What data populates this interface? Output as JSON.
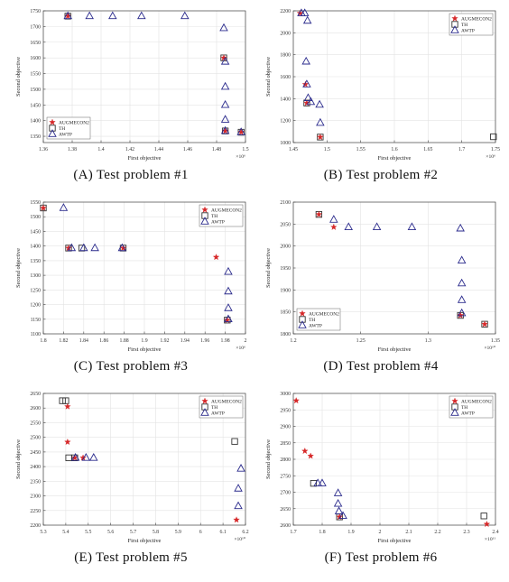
{
  "colors": {
    "augmecon2": "#d62728",
    "th": "#333333",
    "awtp": "#2a2a8c",
    "axis": "#444444",
    "grid": "#e3e3e3"
  },
  "chart_data": [
    {
      "type": "scatter",
      "caption": "(A) Test problem #1",
      "xlabel": "First objective",
      "ylabel": "Second objective",
      "xlim": [
        1.36,
        1.5
      ],
      "ylim": [
        1330,
        1750
      ],
      "xticks": [
        "1.36",
        "1.38",
        "1.4",
        "1.42",
        "1.44",
        "1.46",
        "1.48",
        "1.5"
      ],
      "yticks": [
        "1350",
        "1400",
        "1450",
        "1500",
        "1550",
        "1600",
        "1650",
        "1700",
        "1750"
      ],
      "xexp": "×10⁶",
      "grid": true,
      "legend_position": "bottom-left",
      "series": [
        {
          "name": "AUGMECON2",
          "marker": "star",
          "points": [
            [
              1.377,
              1733
            ],
            [
              1.485,
              1600
            ],
            [
              1.486,
              1367
            ],
            [
              1.497,
              1363
            ]
          ]
        },
        {
          "name": "TH",
          "marker": "square",
          "points": [
            [
              1.377,
              1733
            ],
            [
              1.485,
              1600
            ],
            [
              1.486,
              1367
            ],
            [
              1.497,
              1363
            ]
          ]
        },
        {
          "name": "AWTP",
          "marker": "triangle",
          "points": [
            [
              1.377,
              1733
            ],
            [
              1.392,
              1733
            ],
            [
              1.408,
              1733
            ],
            [
              1.428,
              1733
            ],
            [
              1.458,
              1733
            ],
            [
              1.485,
              1695
            ],
            [
              1.486,
              1588
            ],
            [
              1.486,
              1508
            ],
            [
              1.486,
              1450
            ],
            [
              1.486,
              1403
            ],
            [
              1.486,
              1367
            ],
            [
              1.497,
              1363
            ]
          ]
        }
      ]
    },
    {
      "type": "scatter",
      "caption": "(B) Test problem #2",
      "xlabel": "First objective",
      "ylabel": "Second objective",
      "xlim": [
        1.45,
        1.75
      ],
      "ylim": [
        1000,
        2200
      ],
      "xticks": [
        "1.45",
        "1.5",
        "1.55",
        "1.6",
        "1.65",
        "1.7",
        "1.75"
      ],
      "yticks": [
        "1000",
        "1200",
        "1400",
        "1600",
        "1800",
        "2000",
        "2200"
      ],
      "xexp": "×10⁶",
      "grid": true,
      "legend_position": "top-right",
      "series": [
        {
          "name": "AUGMECON2",
          "marker": "star",
          "points": [
            [
              1.46,
              2178
            ],
            [
              1.468,
              1530
            ],
            [
              1.47,
              1360
            ],
            [
              1.49,
              1050
            ]
          ]
        },
        {
          "name": "TH",
          "marker": "square",
          "points": [
            [
              1.47,
              1360
            ],
            [
              1.49,
              1050
            ],
            [
              1.747,
              1053
            ]
          ]
        },
        {
          "name": "AWTP",
          "marker": "triangle",
          "points": [
            [
              1.462,
              2178
            ],
            [
              1.467,
              2178
            ],
            [
              1.471,
              2110
            ],
            [
              1.469,
              1738
            ],
            [
              1.47,
              1530
            ],
            [
              1.472,
              1405
            ],
            [
              1.476,
              1370
            ],
            [
              1.489,
              1345
            ],
            [
              1.49,
              1180
            ]
          ]
        }
      ]
    },
    {
      "type": "scatter",
      "caption": "(C) Test problem #3",
      "xlabel": "First objective",
      "ylabel": "Second objective",
      "xlim": [
        1.8,
        2.0
      ],
      "ylim": [
        1100,
        1550
      ],
      "xticks": [
        "1.8",
        "1.82",
        "1.84",
        "1.86",
        "1.88",
        "1.9",
        "1.92",
        "1.94",
        "1.96",
        "1.98",
        "2"
      ],
      "yticks": [
        "1100",
        "1150",
        "1200",
        "1250",
        "1300",
        "1350",
        "1400",
        "1450",
        "1500",
        "1550"
      ],
      "xexp": "×10⁶",
      "grid": true,
      "legend_position": "top-right",
      "series": [
        {
          "name": "AUGMECON2",
          "marker": "star",
          "points": [
            [
              1.8,
              1530
            ],
            [
              1.825,
              1393
            ],
            [
              1.879,
              1393
            ],
            [
              1.971,
              1362
            ],
            [
              1.982,
              1147
            ]
          ]
        },
        {
          "name": "TH",
          "marker": "square",
          "points": [
            [
              1.8,
              1530
            ],
            [
              1.825,
              1393
            ],
            [
              1.838,
              1393
            ],
            [
              1.879,
              1393
            ],
            [
              1.982,
              1147
            ]
          ]
        },
        {
          "name": "AWTP",
          "marker": "triangle",
          "points": [
            [
              1.82,
              1530
            ],
            [
              1.828,
              1393
            ],
            [
              1.84,
              1393
            ],
            [
              1.851,
              1393
            ],
            [
              1.878,
              1393
            ],
            [
              1.983,
              1312
            ],
            [
              1.983,
              1245
            ],
            [
              1.983,
              1188
            ],
            [
              1.983,
              1150
            ]
          ]
        }
      ]
    },
    {
      "type": "scatter",
      "caption": "(D) Test problem #4",
      "xlabel": "First objective",
      "ylabel": "Second objective",
      "xlim": [
        1.2,
        1.35
      ],
      "ylim": [
        1800,
        2100
      ],
      "xticks": [
        "1.2",
        "1.25",
        "1.3",
        "1.35"
      ],
      "yticks": [
        "1800",
        "1850",
        "1900",
        "1950",
        "2000",
        "2050",
        "2100"
      ],
      "xexp": "×10¹⁰",
      "grid": true,
      "legend_position": "bottom-left",
      "series": [
        {
          "name": "AUGMECON2",
          "marker": "star",
          "points": [
            [
              1.219,
              2072
            ],
            [
              1.23,
              2043
            ],
            [
              1.324,
              1842
            ],
            [
              1.342,
              1822
            ]
          ]
        },
        {
          "name": "TH",
          "marker": "square",
          "points": [
            [
              1.219,
              2072
            ],
            [
              1.324,
              1842
            ],
            [
              1.342,
              1822
            ]
          ]
        },
        {
          "name": "AWTP",
          "marker": "triangle",
          "points": [
            [
              1.23,
              2060
            ],
            [
              1.241,
              2043
            ],
            [
              1.262,
              2043
            ],
            [
              1.288,
              2043
            ],
            [
              1.324,
              2040
            ],
            [
              1.325,
              1967
            ],
            [
              1.325,
              1915
            ],
            [
              1.325,
              1877
            ],
            [
              1.325,
              1847
            ]
          ]
        }
      ]
    },
    {
      "type": "scatter",
      "caption": "(E) Test problem #5",
      "xlabel": "First objective",
      "ylabel": "Second objective",
      "xlim": [
        5.3,
        6.2
      ],
      "ylim": [
        2200,
        2650
      ],
      "xticks": [
        "5.3",
        "5.4",
        "5.5",
        "5.6",
        "5.7",
        "5.8",
        "5.9",
        "6",
        "6.1",
        "6.2"
      ],
      "yticks": [
        "2200",
        "2250",
        "2300",
        "2350",
        "2400",
        "2450",
        "2500",
        "2550",
        "2600",
        "2650"
      ],
      "xexp": "×10¹⁰",
      "grid": true,
      "legend_position": "top-right",
      "series": [
        {
          "name": "AUGMECON2",
          "marker": "star",
          "points": [
            [
              5.408,
              2605
            ],
            [
              5.408,
              2484
            ],
            [
              5.44,
              2430
            ],
            [
              5.477,
              2430
            ],
            [
              6.16,
              2218
            ]
          ]
        },
        {
          "name": "TH",
          "marker": "square",
          "points": [
            [
              5.385,
              2625
            ],
            [
              5.4,
              2625
            ],
            [
              5.413,
              2430
            ],
            [
              5.44,
              2430
            ],
            [
              6.152,
              2486
            ]
          ]
        },
        {
          "name": "AWTP",
          "marker": "triangle",
          "points": [
            [
              5.443,
              2430
            ],
            [
              5.49,
              2430
            ],
            [
              5.524,
              2430
            ],
            [
              6.18,
              2393
            ],
            [
              6.168,
              2325
            ],
            [
              6.168,
              2265
            ]
          ]
        }
      ]
    },
    {
      "type": "scatter",
      "caption": "(F) Test problem #6",
      "xlabel": "First objective",
      "ylabel": "Second objective",
      "xlim": [
        1.7,
        2.4
      ],
      "ylim": [
        2600,
        3000
      ],
      "xticks": [
        "1.7",
        "1.8",
        "1.9",
        "2",
        "2.1",
        "2.2",
        "2.3",
        "2.4"
      ],
      "yticks": [
        "2600",
        "2650",
        "2700",
        "2750",
        "2800",
        "2850",
        "2900",
        "2950",
        "3000"
      ],
      "xexp": "×10¹¹",
      "grid": true,
      "legend_position": "top-right",
      "series": [
        {
          "name": "AUGMECON2",
          "marker": "star",
          "points": [
            [
              1.71,
              2978
            ],
            [
              1.74,
              2825
            ],
            [
              1.76,
              2810
            ],
            [
              1.86,
              2625
            ],
            [
              2.37,
              2603
            ]
          ]
        },
        {
          "name": "TH",
          "marker": "square",
          "points": [
            [
              1.77,
              2727
            ],
            [
              1.86,
              2625
            ],
            [
              2.36,
              2628
            ]
          ]
        },
        {
          "name": "AWTP",
          "marker": "triangle",
          "points": [
            [
              1.785,
              2727
            ],
            [
              1.8,
              2727
            ],
            [
              1.855,
              2697
            ],
            [
              1.855,
              2665
            ],
            [
              1.858,
              2642
            ],
            [
              1.872,
              2628
            ]
          ]
        }
      ]
    }
  ]
}
